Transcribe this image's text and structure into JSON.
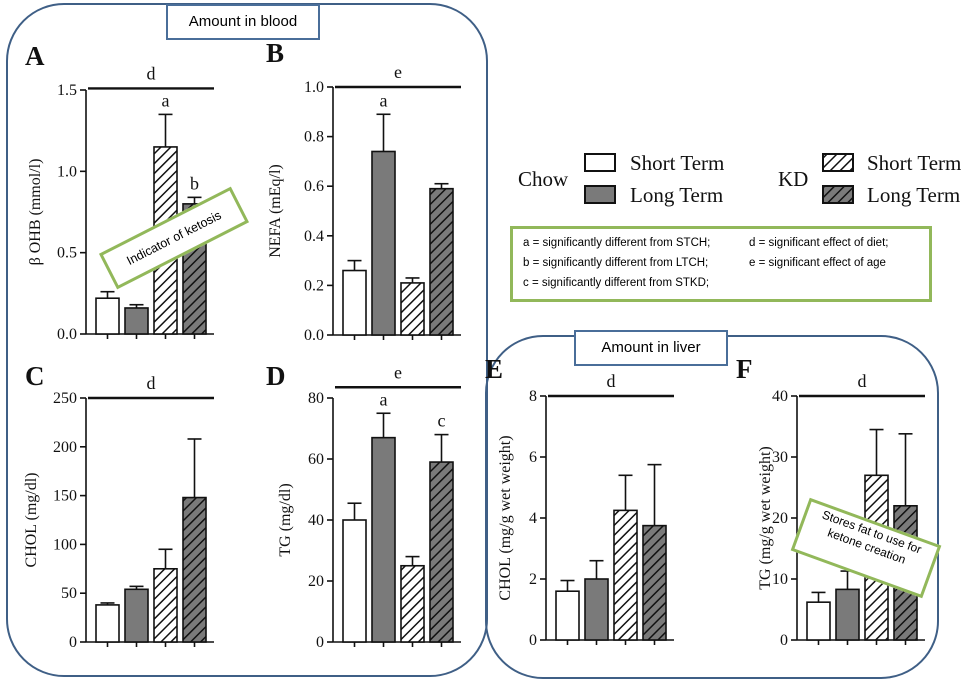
{
  "regions": {
    "blood_label": "Amount in blood",
    "liver_label": "Amount in liver"
  },
  "legend": {
    "group1": "Chow",
    "group2": "KD",
    "short_term": "Short Term",
    "long_term": "Long Term"
  },
  "significance_key": [
    "a = significantly different from STCH;",
    "b = significantly different from LTCH;",
    "c = significantly different from STKD;",
    "d = significant effect of diet;",
    "e = significant effect of age"
  ],
  "callouts": {
    "ketosis": "Indicator of ketosis",
    "fat": "Stores fat to use for ketone creation"
  },
  "colors": {
    "region_border": "#3f5f86",
    "callout_border": "#92b85a",
    "bar_long_term": "#7a7a7a",
    "bar_short_term": "#ffffff"
  },
  "chart_data": [
    {
      "panel": "A",
      "type": "bar",
      "ylabel": "β OHB (mmol/l)",
      "ylim": [
        0,
        1.5
      ],
      "yticks": [
        "0.0",
        "0.5",
        "1.0",
        "1.5"
      ],
      "categories": [
        "Chow Short Term",
        "Chow Long Term",
        "KD Short Term",
        "KD Long Term"
      ],
      "values": [
        0.22,
        0.16,
        1.15,
        0.8
      ],
      "errors": [
        0.04,
        0.02,
        0.2,
        0.04
      ],
      "bar_labels": [
        "",
        "",
        "a",
        "b"
      ],
      "bracket": {
        "from": 0,
        "to": 3,
        "label": "d"
      }
    },
    {
      "panel": "B",
      "type": "bar",
      "ylabel": "NEFA (mEq/l)",
      "ylim": [
        0,
        1.0
      ],
      "yticks": [
        "0.0",
        "0.2",
        "0.4",
        "0.6",
        "0.8",
        "1.0"
      ],
      "categories": [
        "Chow Short Term",
        "Chow Long Term",
        "KD Short Term",
        "KD Long Term"
      ],
      "values": [
        0.26,
        0.74,
        0.21,
        0.59
      ],
      "errors": [
        0.04,
        0.15,
        0.02,
        0.02
      ],
      "bar_labels": [
        "",
        "a",
        "",
        ""
      ],
      "bracket": {
        "from": 0,
        "to": 3,
        "label": "e"
      }
    },
    {
      "panel": "C",
      "type": "bar",
      "ylabel": "CHOL (mg/dl)",
      "ylim": [
        0,
        250
      ],
      "yticks": [
        "0",
        "50",
        "100",
        "150",
        "200",
        "250"
      ],
      "categories": [
        "Chow Short Term",
        "Chow Long Term",
        "KD Short Term",
        "KD Long Term"
      ],
      "values": [
        38,
        54,
        75,
        148
      ],
      "errors": [
        2,
        3,
        20,
        60
      ],
      "bar_labels": [
        "",
        "",
        "",
        ""
      ],
      "bracket": {
        "from": 0,
        "to": 3,
        "label": "d"
      }
    },
    {
      "panel": "D",
      "type": "bar",
      "ylabel": "TG (mg/dl)",
      "ylim": [
        0,
        80
      ],
      "yticks": [
        "0",
        "20",
        "40",
        "60",
        "80"
      ],
      "categories": [
        "Chow Short Term",
        "Chow Long Term",
        "KD Short Term",
        "KD Long Term"
      ],
      "values": [
        40,
        67,
        25,
        59
      ],
      "errors": [
        5.5,
        8,
        3,
        9
      ],
      "bar_labels": [
        "",
        "a",
        "",
        "c"
      ],
      "bracket": {
        "from": 0,
        "to": 3,
        "label": "e"
      }
    },
    {
      "panel": "E",
      "type": "bar",
      "ylabel": "CHOL (mg/g wet weight)",
      "ylim": [
        0,
        8
      ],
      "yticks": [
        "0",
        "2",
        "4",
        "6",
        "8"
      ],
      "categories": [
        "Chow Short Term",
        "Chow Long Term",
        "KD Short Term",
        "KD Long Term"
      ],
      "values": [
        1.6,
        2.0,
        4.25,
        3.75
      ],
      "errors": [
        0.35,
        0.6,
        1.15,
        2.0
      ],
      "bar_labels": [
        "",
        "",
        "",
        ""
      ],
      "bracket": {
        "from": 0,
        "to": 3,
        "label": "d"
      }
    },
    {
      "panel": "F",
      "type": "bar",
      "ylabel": "TG (mg/g wet weight)",
      "ylim": [
        0,
        40
      ],
      "yticks": [
        "0",
        "10",
        "20",
        "30",
        "40"
      ],
      "categories": [
        "Chow Short Term",
        "Chow Long Term",
        "KD Short Term",
        "KD Long Term"
      ],
      "values": [
        6.2,
        8.3,
        27,
        22
      ],
      "errors": [
        1.6,
        3.0,
        7.5,
        11.8
      ],
      "bar_labels": [
        "",
        "",
        "",
        ""
      ],
      "bracket": {
        "from": 0,
        "to": 3,
        "label": "d"
      }
    }
  ]
}
